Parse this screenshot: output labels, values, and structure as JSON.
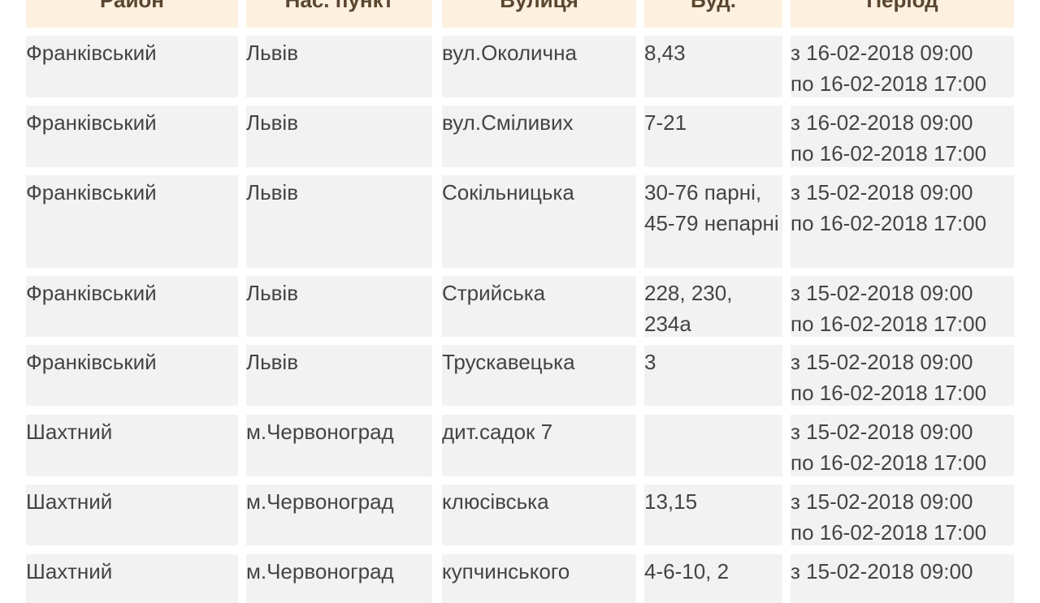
{
  "table": {
    "header": [
      "Район",
      "Нас. пункт",
      "Вулиця",
      "Буд.",
      "Період"
    ],
    "rows": [
      {
        "district": "Франківський",
        "settlement": "Львів",
        "street": "вул.Околична",
        "building": "8,43",
        "period": [
          "з 16-02-2018 09:00",
          "по 16-02-2018 17:00"
        ]
      },
      {
        "district": "Франківський",
        "settlement": "Львів",
        "street": "вул.Сміливих",
        "building": "7-21",
        "period": [
          "з 16-02-2018 09:00",
          "по 16-02-2018 17:00"
        ]
      },
      {
        "district": "Франківський",
        "settlement": "Львів",
        "street": "Сокільницька",
        "building": "30-76 парні, 45-79 непарні",
        "period": [
          "з 15-02-2018 09:00",
          "по 16-02-2018 17:00"
        ]
      },
      {
        "district": "Франківський",
        "settlement": "Львів",
        "street": "Стрийська",
        "building": "228, 230, 234а",
        "period": [
          "з 15-02-2018 09:00",
          "по 16-02-2018 17:00"
        ]
      },
      {
        "district": "Франківський",
        "settlement": "Львів",
        "street": "Трускавецька",
        "building": "3",
        "period": [
          "з 15-02-2018 09:00",
          "по 16-02-2018 17:00"
        ]
      },
      {
        "district": "Шахтний",
        "settlement": "м.Червоноград",
        "street": "дит.садок 7",
        "period": [
          "з 15-02-2018 09:00",
          "по 16-02-2018 17:00"
        ]
      },
      {
        "district": "Шахтний",
        "settlement": "м.Червоноград",
        "street": "клюсівська",
        "building": "13,15",
        "period": [
          "з 15-02-2018 09:00",
          "по 16-02-2018 17:00"
        ]
      },
      {
        "district": "Шахтний",
        "settlement": "м.Червоноград",
        "street": "купчинського",
        "building": "4-6-10, 2",
        "period": [
          "з 15-02-2018 09:00"
        ]
      }
    ]
  }
}
